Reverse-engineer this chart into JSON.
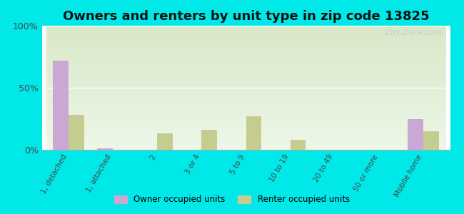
{
  "title": "Owners and renters by unit type in zip code 13825",
  "categories": [
    "1, detached",
    "1, attached",
    "2",
    "3 or 4",
    "5 to 9",
    "10 to 19",
    "20 to 49",
    "50 or more",
    "Mobile home"
  ],
  "owner_values": [
    72,
    1,
    0,
    0,
    0,
    0,
    0,
    0,
    25
  ],
  "renter_values": [
    28,
    0,
    13,
    16,
    27,
    8,
    0,
    0,
    15
  ],
  "owner_color": "#c9a8d4",
  "renter_color": "#c5cc90",
  "background_color": "#00e8e8",
  "ylim": [
    0,
    100
  ],
  "yticks": [
    0,
    50,
    100
  ],
  "ytick_labels": [
    "0%",
    "50%",
    "100%"
  ],
  "title_fontsize": 13,
  "legend_owner": "Owner occupied units",
  "legend_renter": "Renter occupied units",
  "bar_width": 0.35
}
